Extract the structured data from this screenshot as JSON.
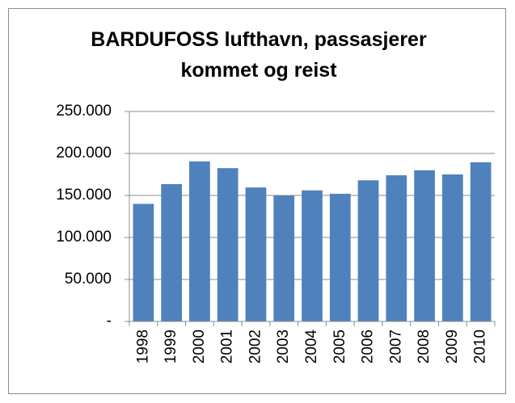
{
  "chart_data": {
    "type": "bar",
    "title": "BARDUFOSS lufthavn, passasjerer kommet og reist",
    "categories": [
      "1998",
      "1999",
      "2000",
      "2001",
      "2002",
      "2003",
      "2004",
      "2005",
      "2006",
      "2007",
      "2008",
      "2009",
      "2010"
    ],
    "values": [
      140000,
      163500,
      190500,
      182500,
      159500,
      150000,
      156000,
      152000,
      168000,
      174000,
      180000,
      175000,
      189500
    ],
    "color": "#4f81bd",
    "ylim": [
      0,
      250000
    ],
    "yticks": [
      {
        "value": 0,
        "label": "-"
      },
      {
        "value": 50000,
        "label": "50.000"
      },
      {
        "value": 100000,
        "label": "100.000"
      },
      {
        "value": 150000,
        "label": "150.000"
      },
      {
        "value": 200000,
        "label": "200.000"
      },
      {
        "value": 250000,
        "label": "250.000"
      }
    ],
    "grid": true
  }
}
